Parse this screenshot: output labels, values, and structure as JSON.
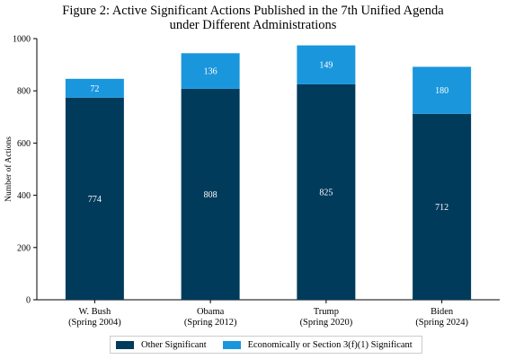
{
  "chart_data": {
    "type": "bar",
    "stacked": true,
    "title_lines": [
      "Figure 2: Active Significant Actions Published in the 7th Unified Agenda",
      "under Different Administrations"
    ],
    "ylabel": "Number of Actions",
    "xlabel": "",
    "ylim": [
      0,
      1000
    ],
    "yticks": [
      "0",
      "200",
      "400",
      "600",
      "800",
      "1000"
    ],
    "categories": [
      [
        "W. Bush",
        "(Spring 2004)"
      ],
      [
        "Obama",
        "(Spring 2012)"
      ],
      [
        "Trump",
        "(Spring 2020)"
      ],
      [
        "Biden",
        "(Spring 2024)"
      ]
    ],
    "series": [
      {
        "name": "Other Significant",
        "values": [
          774,
          808,
          825,
          712
        ],
        "color": "#003b5c"
      },
      {
        "name": "Economically or Section 3(f)(1) Significant",
        "values": [
          72,
          136,
          149,
          180
        ],
        "color": "#1a96dc"
      }
    ],
    "grid": false,
    "legend_position": "bottom-center"
  }
}
